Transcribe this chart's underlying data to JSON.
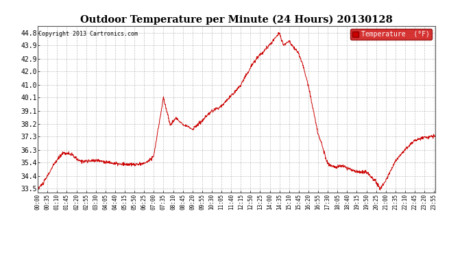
{
  "title": "Outdoor Temperature per Minute (24 Hours) 20130128",
  "copyright_text": "Copyright 2013 Cartronics.com",
  "legend_label": "Temperature  (°F)",
  "line_color": "#cc0000",
  "background_color": "#ffffff",
  "grid_color": "#b0b0b0",
  "yticks": [
    33.5,
    34.4,
    35.4,
    36.3,
    37.3,
    38.2,
    39.1,
    40.1,
    41.0,
    42.0,
    42.9,
    43.9,
    44.8
  ],
  "ymin": 33.2,
  "ymax": 45.3,
  "num_points": 1440,
  "xtick_interval": 35,
  "xtick_labels": [
    "00:00",
    "00:35",
    "01:10",
    "01:45",
    "02:20",
    "02:55",
    "03:30",
    "04:05",
    "04:40",
    "05:15",
    "05:50",
    "06:25",
    "07:00",
    "07:35",
    "08:10",
    "08:45",
    "09:20",
    "09:55",
    "10:30",
    "11:05",
    "11:40",
    "12:15",
    "12:50",
    "13:25",
    "14:00",
    "14:35",
    "15:10",
    "15:45",
    "16:20",
    "16:55",
    "17:30",
    "18:05",
    "18:40",
    "19:15",
    "19:50",
    "20:25",
    "21:00",
    "21:35",
    "22:10",
    "22:45",
    "23:20",
    "23:55"
  ]
}
